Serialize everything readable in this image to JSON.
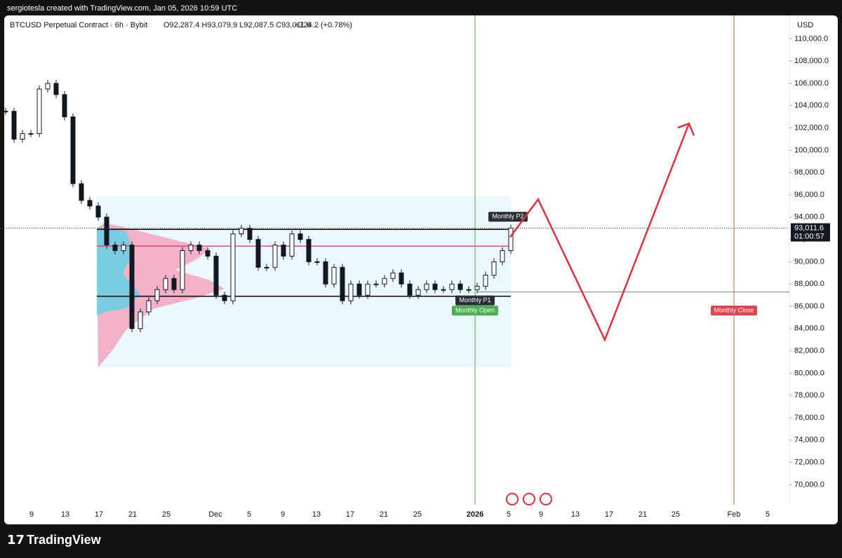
{
  "header": "sergiotesla created with TradingView.com, Jan 05, 2026 10:59 UTC",
  "footer": "TradingView",
  "chart_data": {
    "type": "candlestick",
    "symbol": "BTCUSD Perpetual Contract · 6h · Bybit",
    "ohlc": "O92,287.4 H93,079.9 L92,087.5 C93,011.6",
    "change": "+724.2 (+0.78%)",
    "currency": "USD",
    "last_price": {
      "value": 93011.6,
      "label": "93,011.6"
    },
    "countdown": "01:00:57",
    "xtick_labels": [
      "9",
      "13",
      "17",
      "21",
      "25",
      "Dec",
      "5",
      "9",
      "13",
      "17",
      "21",
      "25",
      "2026",
      "5",
      "9",
      "13",
      "17",
      "21",
      "25",
      "Feb",
      "5"
    ],
    "series": [
      {
        "name": "BTCUSD",
        "color": "#131722",
        "values": [
          103500,
          101000,
          101500,
          101500,
          105500,
          106000,
          105000,
          103000,
          97000,
          95500,
          95000,
          94000,
          91500,
          91000,
          91500,
          84000,
          85500,
          86500,
          87500,
          88500,
          87500,
          91000,
          91500,
          91000,
          90500,
          87000,
          86500,
          92500,
          93000,
          92000,
          89500,
          89500,
          91500,
          90500,
          92500,
          92000,
          90000,
          90000,
          88000,
          89500,
          86500,
          88000,
          87000,
          88000,
          88000,
          88500,
          89000,
          88000,
          87000,
          87500,
          88000,
          87500,
          87500,
          88000,
          87500,
          87500,
          87800,
          88800,
          90000,
          91000,
          93011.6
        ]
      }
    ],
    "levels": [
      {
        "name": "Monthly P2",
        "value": 92900,
        "color": "#000000"
      },
      {
        "name": "Monthly P1",
        "value": 86900,
        "color": "#000000"
      },
      {
        "value": 91400,
        "color": "#e0457b"
      },
      {
        "value": 87300,
        "color": "#787b86"
      }
    ],
    "annotations": {
      "open": "Monthly Open",
      "close": "Monthly Close"
    },
    "projection": {
      "color": "#e0303f",
      "values": [
        92200,
        95600,
        83000,
        102400
      ]
    },
    "ylim": [
      68200,
      112100
    ],
    "yticks": [
      {
        "value": 70000,
        "label": "70,000.0"
      },
      {
        "value": 72000,
        "label": "72,000.0"
      },
      {
        "value": 74000,
        "label": "74,000.0"
      },
      {
        "value": 76000,
        "label": "76,000.0"
      },
      {
        "value": 78000,
        "label": "78,000.0"
      },
      {
        "value": 80000,
        "label": "80,000.0"
      },
      {
        "value": 82000,
        "label": "82,000.0"
      },
      {
        "value": 84000,
        "label": "84,000.0"
      },
      {
        "value": 86000,
        "label": "86,000.0"
      },
      {
        "value": 88000,
        "label": "88,000.0"
      },
      {
        "value": 90000,
        "label": "90,000.0"
      },
      {
        "value": 92000,
        "label": "92,000.0"
      },
      {
        "value": 94000,
        "label": "94,000.0"
      },
      {
        "value": 96000,
        "label": "96,000.0"
      },
      {
        "value": 98000,
        "label": "98,000.0"
      },
      {
        "value": 100000,
        "label": "100,000.0"
      },
      {
        "value": 102000,
        "label": "102,000.0"
      },
      {
        "value": 104000,
        "label": "104,000.0"
      },
      {
        "value": 106000,
        "label": "106,000.0"
      },
      {
        "value": 108000,
        "label": "108,000.0"
      },
      {
        "value": 110000,
        "label": "110,000.0"
      }
    ]
  }
}
